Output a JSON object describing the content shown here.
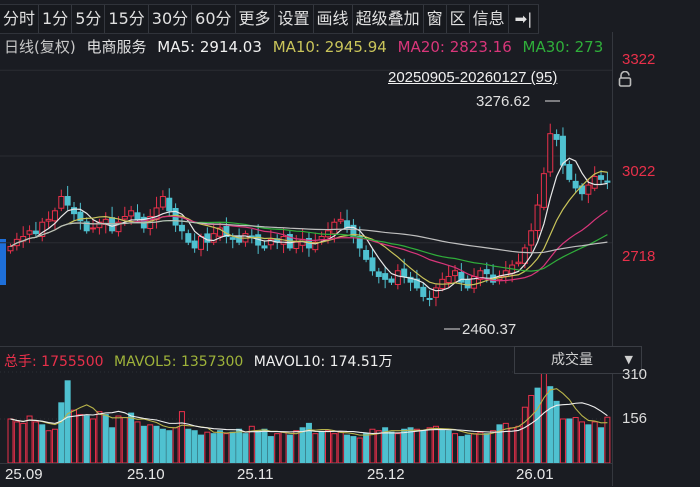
{
  "toolbar": {
    "items": [
      "分时",
      "1分",
      "5分",
      "15分",
      "30分",
      "60分",
      "更多",
      "设置",
      "画线",
      "超级叠加",
      "窗",
      "区",
      "信息"
    ],
    "collapse_icon": "collapse-right-icon"
  },
  "info": {
    "period": "日线(复权)",
    "name": "电商服务",
    "ma5": "MA5: 2914.03",
    "ma10": "MA10: 2945.94",
    "ma20": "MA20: 2823.16",
    "ma30": "MA30: 273"
  },
  "range_label": "20250905-20260127 (95)",
  "volume_info": {
    "total": "总手: 1755500",
    "mavol5": "MAVOL5: 1357300",
    "mavol10": "MAVOL10: 174.51万"
  },
  "volume_selector": {
    "label": "成交量",
    "icon": "dropdown-arrow-icon"
  },
  "colors": {
    "up": "#e8304a",
    "down": "#4fc1d0",
    "ma5": "#e8e8e8",
    "ma10": "#c9c45a",
    "ma20": "#d8367a",
    "ma30": "#2fae3a",
    "ma60": "#bfbfbf"
  },
  "chart_data": {
    "type": "candlestick",
    "title": "电商服务 日线(复权)",
    "date_range": "20250905-20260127",
    "bars": 95,
    "price_axis": {
      "ticks": [
        3322,
        3022,
        2718
      ],
      "ylim": [
        2400,
        3400
      ]
    },
    "high_annotation": {
      "label": "3276.62",
      "value": 3276.62
    },
    "low_annotation": {
      "label": "2460.37",
      "value": 2460.37
    },
    "x_ticks": [
      "25.09",
      "25.10",
      "25.11",
      "25.12",
      "26.01"
    ],
    "volume_axis": {
      "ticks": [
        "310",
        "156"
      ]
    },
    "indicators": {
      "MA5": 2914.03,
      "MA10": 2945.94,
      "MA20": 2823.16,
      "MA30": 273
    },
    "volume": {
      "total": 1755500,
      "MAVOL5": 1357300,
      "MAVOL10": "174.51万"
    },
    "closes": [
      2705,
      2730,
      2740,
      2760,
      2750,
      2790,
      2800,
      2830,
      2880,
      2850,
      2820,
      2795,
      2760,
      2770,
      2790,
      2800,
      2760,
      2790,
      2810,
      2830,
      2800,
      2770,
      2810,
      2840,
      2880,
      2830,
      2780,
      2760,
      2720,
      2700,
      2740,
      2720,
      2750,
      2770,
      2740,
      2730,
      2720,
      2750,
      2740,
      2710,
      2700,
      2730,
      2720,
      2740,
      2700,
      2720,
      2730,
      2700,
      2720,
      2740,
      2760,
      2790,
      2800,
      2770,
      2740,
      2700,
      2660,
      2620,
      2600,
      2590,
      2580,
      2620,
      2600,
      2580,
      2560,
      2530,
      2520,
      2560,
      2590,
      2600,
      2620,
      2580,
      2560,
      2600,
      2620,
      2610,
      2580,
      2600,
      2620,
      2640,
      2650,
      2700,
      2760,
      2850,
      2960,
      3100,
      3080,
      2990,
      2940,
      2910,
      2890,
      2920,
      2950,
      2940,
      2930
    ],
    "volumes": [
      150,
      140,
      135,
      160,
      140,
      130,
      110,
      115,
      205,
      280,
      180,
      165,
      160,
      150,
      175,
      165,
      120,
      160,
      155,
      170,
      140,
      125,
      130,
      125,
      115,
      110,
      120,
      175,
      115,
      110,
      95,
      105,
      100,
      110,
      100,
      105,
      115,
      100,
      125,
      110,
      115,
      90,
      100,
      105,
      95,
      110,
      120,
      135,
      100,
      105,
      110,
      100,
      105,
      95,
      90,
      85,
      100,
      115,
      110,
      120,
      105,
      100,
      115,
      120,
      115,
      110,
      120,
      125,
      115,
      110,
      100,
      90,
      95,
      100,
      105,
      100,
      110,
      130,
      135,
      120,
      125,
      190,
      230,
      255,
      310,
      260,
      210,
      150,
      150,
      155,
      140,
      130,
      140,
      120,
      156
    ],
    "vol_up": [
      true,
      true,
      true,
      true,
      true,
      false,
      true,
      true,
      false,
      false,
      true,
      true,
      false,
      true,
      true,
      false,
      false,
      true,
      true,
      false,
      true,
      false,
      true,
      false,
      false,
      false,
      true,
      true,
      false,
      false,
      false,
      true,
      false,
      false,
      true,
      false,
      false,
      false,
      true,
      false,
      false,
      false,
      true,
      true,
      false,
      true,
      false,
      false,
      true,
      false,
      true,
      true,
      true,
      false,
      false,
      true,
      false,
      true,
      true,
      false,
      false,
      true,
      false,
      false,
      true,
      false,
      true,
      true,
      false,
      false,
      true,
      false,
      false,
      true,
      true,
      false,
      true,
      false,
      true,
      true,
      true,
      true,
      true,
      false,
      true,
      false,
      false,
      true,
      false,
      true,
      true,
      false,
      true,
      false,
      true
    ]
  }
}
